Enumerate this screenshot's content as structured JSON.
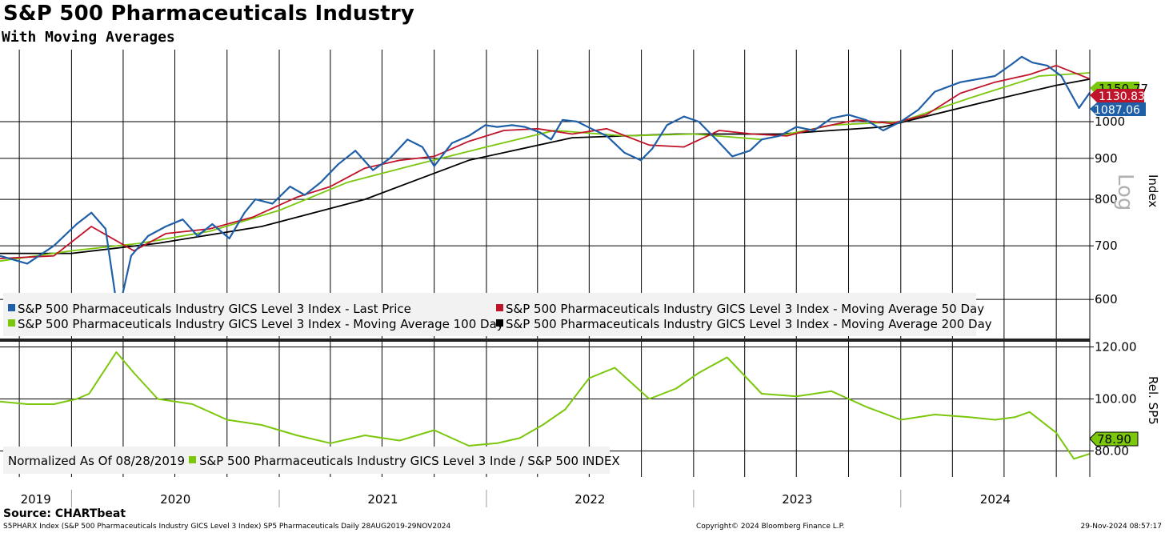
{
  "title": "S&P 500 Pharmaceuticals Industry",
  "subtitle": "With Moving Averages",
  "source": "Source: CHARTbeat",
  "footer_left": "S5PHARX Index (S&P 500 Pharmaceuticals Industry GICS Level 3 Index) SP5 Pharmaceuticals  Daily 28AUG2019-29NOV2024",
  "footer_center": "Copyright© 2024 Bloomberg Finance L.P.",
  "footer_right": "29-Nov-2024 08:57:17",
  "colors": {
    "last_price": "#1f5fa8",
    "ma50": "#c0142a",
    "ma100": "#7ac70c",
    "ma200": "#000000",
    "relative": "#7ac70c"
  },
  "chart_data": [
    {
      "type": "line",
      "yscale": "log",
      "ylabel": "Index",
      "scale_label": "Log",
      "ylim": [
        540,
        1230
      ],
      "yticks": [
        "600",
        "700",
        "800",
        "900",
        "1000"
      ],
      "x_years": [
        "2019",
        "2020",
        "2021",
        "2022",
        "2023",
        "2024"
      ],
      "x_range": [
        "2019-08-28",
        "2024-11-29"
      ],
      "last_values": {
        "last_price": "1087.06",
        "ma50": "1130.83",
        "ma100": "1150.77"
      },
      "series": [
        {
          "key": "last_price",
          "name": "S&P 500 Pharmaceuticals Industry GICS Level 3 Index - Last Price",
          "x": [
            "2019-08-28",
            "2019-10-15",
            "2019-12-01",
            "2020-01-10",
            "2020-02-05",
            "2020-03-01",
            "2020-03-23",
            "2020-04-15",
            "2020-05-15",
            "2020-06-15",
            "2020-07-15",
            "2020-08-10",
            "2020-09-05",
            "2020-10-05",
            "2020-11-01",
            "2020-11-20",
            "2020-12-20",
            "2021-01-20",
            "2021-02-15",
            "2021-03-15",
            "2021-04-15",
            "2021-05-15",
            "2021-06-15",
            "2021-07-15",
            "2021-08-15",
            "2021-09-10",
            "2021-10-01",
            "2021-11-01",
            "2021-12-01",
            "2021-12-30",
            "2022-01-20",
            "2022-02-15",
            "2022-03-10",
            "2022-04-05",
            "2022-04-25",
            "2022-05-15",
            "2022-06-10",
            "2022-07-05",
            "2022-08-01",
            "2022-09-01",
            "2022-09-30",
            "2022-10-20",
            "2022-11-15",
            "2022-12-15",
            "2023-01-10",
            "2023-02-10",
            "2023-03-10",
            "2023-04-10",
            "2023-05-01",
            "2023-06-01",
            "2023-07-01",
            "2023-08-01",
            "2023-09-01",
            "2023-10-01",
            "2023-11-01",
            "2023-12-01",
            "2024-01-01",
            "2024-02-01",
            "2024-03-01",
            "2024-04-15",
            "2024-05-15",
            "2024-06-15",
            "2024-07-15",
            "2024-08-01",
            "2024-08-20",
            "2024-09-15",
            "2024-10-10",
            "2024-10-25",
            "2024-11-10",
            "2024-11-29"
          ],
          "values": [
            680,
            665,
            700,
            745,
            770,
            735,
            575,
            680,
            720,
            740,
            755,
            720,
            745,
            715,
            770,
            800,
            790,
            830,
            810,
            840,
            885,
            920,
            870,
            900,
            950,
            930,
            880,
            940,
            960,
            990,
            985,
            990,
            985,
            970,
            950,
            1005,
            1000,
            980,
            960,
            915,
            895,
            925,
            990,
            1015,
            1000,
            950,
            905,
            920,
            950,
            960,
            985,
            975,
            1010,
            1020,
            1005,
            975,
            1000,
            1035,
            1090,
            1120,
            1130,
            1140,
            1180,
            1205,
            1185,
            1175,
            1140,
            1090,
            1040,
            1087.06
          ]
        },
        {
          "key": "ma50",
          "name": "S&P 500 Pharmaceuticals Industry GICS Level 3 Index - Moving Average 50 Day",
          "x": [
            "2019-08-28",
            "2019-12-01",
            "2020-02-05",
            "2020-04-20",
            "2020-06-15",
            "2020-09-01",
            "2020-11-15",
            "2021-02-01",
            "2021-04-01",
            "2021-06-01",
            "2021-08-01",
            "2021-10-01",
            "2021-12-01",
            "2022-02-01",
            "2022-04-01",
            "2022-06-01",
            "2022-08-01",
            "2022-10-15",
            "2022-12-15",
            "2023-02-15",
            "2023-04-15",
            "2023-06-15",
            "2023-08-15",
            "2023-10-15",
            "2023-12-15",
            "2024-02-15",
            "2024-04-15",
            "2024-06-15",
            "2024-08-15",
            "2024-10-01",
            "2024-11-29"
          ],
          "values": [
            675,
            680,
            740,
            690,
            725,
            735,
            760,
            805,
            830,
            875,
            895,
            905,
            945,
            975,
            980,
            965,
            980,
            935,
            930,
            975,
            965,
            960,
            985,
            1005,
            995,
            1020,
            1085,
            1120,
            1145,
            1175,
            1130.83
          ]
        },
        {
          "key": "ma100",
          "name": "S&P 500 Pharmaceuticals Industry GICS Level 3 Index - Moving Average 100 Day",
          "x": [
            "2019-08-28",
            "2020-01-01",
            "2020-05-01",
            "2020-09-01",
            "2021-01-01",
            "2021-05-01",
            "2021-09-01",
            "2022-01-01",
            "2022-05-01",
            "2022-09-01",
            "2023-01-01",
            "2023-05-01",
            "2023-09-01",
            "2024-01-01",
            "2024-05-01",
            "2024-09-01",
            "2024-11-29"
          ],
          "values": [
            670,
            690,
            705,
            730,
            775,
            840,
            885,
            930,
            975,
            960,
            965,
            950,
            990,
            1000,
            1070,
            1140,
            1150.77
          ]
        },
        {
          "key": "ma200",
          "name": "S&P 500 Pharmaceuticals Industry GICS Level 3 Index - Moving Average 200 Day",
          "x": [
            "2019-08-28",
            "2020-01-01",
            "2020-06-01",
            "2020-12-01",
            "2021-06-01",
            "2021-12-01",
            "2022-06-01",
            "2022-12-01",
            "2023-06-01",
            "2023-12-01",
            "2024-06-01",
            "2024-10-01",
            "2024-11-29"
          ],
          "values": [
            685,
            685,
            705,
            740,
            800,
            895,
            955,
            965,
            965,
            985,
            1060,
            1110,
            1130
          ]
        }
      ]
    },
    {
      "type": "line",
      "ylabel": "Rel. SP5",
      "ylim": [
        70,
        122
      ],
      "yticks": [
        "80.00",
        "100.00",
        "120.00"
      ],
      "normalized_label": "Normalized As Of 08/28/2019",
      "last_value": "78.90",
      "series": [
        {
          "key": "relative",
          "name": "S&P 500 Pharmaceuticals Industry GICS Level 3 Inde / S&P 500 INDEX",
          "x": [
            "2019-08-28",
            "2019-10-15",
            "2019-12-01",
            "2020-01-10",
            "2020-02-01",
            "2020-03-20",
            "2020-04-20",
            "2020-06-01",
            "2020-08-01",
            "2020-10-01",
            "2020-12-01",
            "2021-02-01",
            "2021-04-01",
            "2021-06-01",
            "2021-08-01",
            "2021-10-01",
            "2021-12-01",
            "2022-01-20",
            "2022-03-01",
            "2022-04-10",
            "2022-05-20",
            "2022-07-01",
            "2022-08-15",
            "2022-10-15",
            "2022-12-01",
            "2023-01-10",
            "2023-03-01",
            "2023-05-01",
            "2023-07-01",
            "2023-09-01",
            "2023-11-01",
            "2024-01-01",
            "2024-03-01",
            "2024-05-01",
            "2024-06-15",
            "2024-07-20",
            "2024-08-15",
            "2024-10-01",
            "2024-11-01",
            "2024-11-29"
          ],
          "values": [
            99,
            98,
            98,
            100,
            102,
            118,
            110,
            100,
            98,
            92,
            90,
            86,
            83,
            86,
            84,
            88,
            82,
            83,
            85,
            90,
            96,
            108,
            112,
            100,
            104,
            110,
            116,
            102,
            101,
            103,
            97,
            92,
            94,
            93,
            92,
            93,
            95,
            87,
            77,
            78.9
          ]
        }
      ]
    }
  ]
}
